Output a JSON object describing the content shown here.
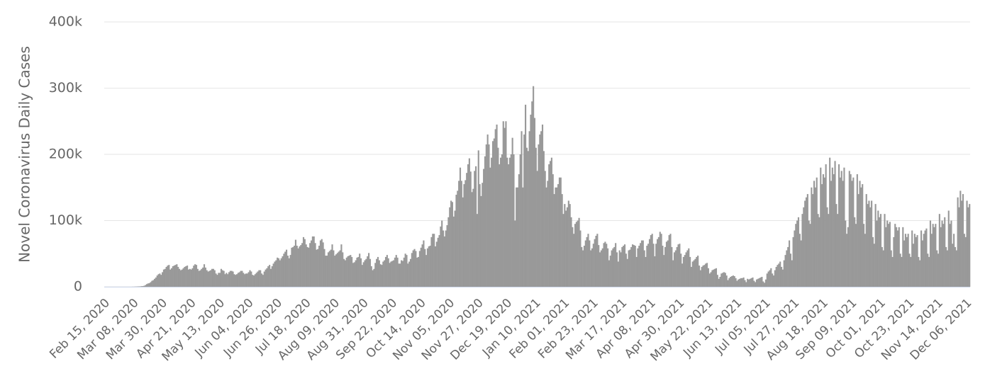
{
  "chart_data": {
    "type": "bar",
    "y_label": "Novel Coronavirus Daily Cases",
    "color": "#999999",
    "grid": true,
    "ylim": [
      0,
      400000
    ],
    "yticks": [
      {
        "value": 0,
        "label": "0"
      },
      {
        "value": 100000,
        "label": "100k"
      },
      {
        "value": 200000,
        "label": "200k"
      },
      {
        "value": 300000,
        "label": "300k"
      },
      {
        "value": 400000,
        "label": "400k"
      }
    ],
    "categories": [
      "Feb 15, 2020",
      null,
      null,
      null,
      null,
      null,
      null,
      null,
      null,
      null,
      null,
      null,
      null,
      null,
      null,
      null,
      null,
      null,
      null,
      null,
      null,
      null,
      "Mar 08, 2020",
      null,
      null,
      null,
      null,
      null,
      null,
      null,
      null,
      null,
      null,
      null,
      null,
      null,
      null,
      null,
      null,
      null,
      null,
      null,
      null,
      null,
      "Mar 30, 2020",
      null,
      null,
      null,
      null,
      null,
      null,
      null,
      null,
      null,
      null,
      null,
      null,
      null,
      null,
      null,
      null,
      null,
      null,
      null,
      null,
      null,
      "Apr 21, 2020",
      null,
      null,
      null,
      null,
      null,
      null,
      null,
      null,
      null,
      null,
      null,
      null,
      null,
      null,
      null,
      null,
      null,
      null,
      null,
      null,
      null,
      "May 13, 2020",
      null,
      null,
      null,
      null,
      null,
      null,
      null,
      null,
      null,
      null,
      null,
      null,
      null,
      null,
      null,
      null,
      null,
      null,
      null,
      null,
      null,
      "Jun 04, 2020",
      null,
      null,
      null,
      null,
      null,
      null,
      null,
      null,
      null,
      null,
      null,
      null,
      null,
      null,
      null,
      null,
      null,
      null,
      null,
      null,
      null,
      "Jun 26, 2020",
      null,
      null,
      null,
      null,
      null,
      null,
      null,
      null,
      null,
      null,
      null,
      null,
      null,
      null,
      null,
      null,
      null,
      null,
      null,
      null,
      null,
      "Jul 18, 2020",
      null,
      null,
      null,
      null,
      null,
      null,
      null,
      null,
      null,
      null,
      null,
      null,
      null,
      null,
      null,
      null,
      null,
      null,
      null,
      null,
      null,
      "Aug 09, 2020",
      null,
      null,
      null,
      null,
      null,
      null,
      null,
      null,
      null,
      null,
      null,
      null,
      null,
      null,
      null,
      null,
      null,
      null,
      null,
      null,
      null,
      "Aug 31, 2020",
      null,
      null,
      null,
      null,
      null,
      null,
      null,
      null,
      null,
      null,
      null,
      null,
      null,
      null,
      null,
      null,
      null,
      null,
      null,
      null,
      null,
      "Sep 22, 2020",
      null,
      null,
      null,
      null,
      null,
      null,
      null,
      null,
      null,
      null,
      null,
      null,
      null,
      null,
      null,
      null,
      null,
      null,
      null,
      null,
      null,
      "Oct 14, 2020",
      null,
      null,
      null,
      null,
      null,
      null,
      null,
      null,
      null,
      null,
      null,
      null,
      null,
      null,
      null,
      null,
      null,
      null,
      null,
      null,
      null,
      "Nov 05, 2020",
      null,
      null,
      null,
      null,
      null,
      null,
      null,
      null,
      null,
      null,
      null,
      null,
      null,
      null,
      null,
      null,
      null,
      null,
      null,
      null,
      null,
      "Nov 27, 2020",
      null,
      null,
      null,
      null,
      null,
      null,
      null,
      null,
      null,
      null,
      null,
      null,
      null,
      null,
      null,
      null,
      null,
      null,
      null,
      null,
      null,
      "Dec 19, 2020",
      null,
      null,
      null,
      null,
      null,
      null,
      null,
      null,
      null,
      null,
      null,
      null,
      null,
      null,
      null,
      null,
      null,
      null,
      null,
      null,
      null,
      "Jan 10, 2021",
      null,
      null,
      null,
      null,
      null,
      null,
      null,
      null,
      null,
      null,
      null,
      null,
      null,
      null,
      null,
      null,
      null,
      null,
      null,
      null,
      null,
      "Feb 01, 2021",
      null,
      null,
      null,
      null,
      null,
      null,
      null,
      null,
      null,
      null,
      null,
      null,
      null,
      null,
      null,
      null,
      null,
      null,
      null,
      null,
      null,
      "Feb 23, 2021",
      null,
      null,
      null,
      null,
      null,
      null,
      null,
      null,
      null,
      null,
      null,
      null,
      null,
      null,
      null,
      null,
      null,
      null,
      null,
      null,
      null,
      "Mar 17, 2021",
      null,
      null,
      null,
      null,
      null,
      null,
      null,
      null,
      null,
      null,
      null,
      null,
      null,
      null,
      null,
      null,
      null,
      null,
      null,
      null,
      null,
      "Apr 08, 2021",
      null,
      null,
      null,
      null,
      null,
      null,
      null,
      null,
      null,
      null,
      null,
      null,
      null,
      null,
      null,
      null,
      null,
      null,
      null,
      null,
      null,
      "Apr 30, 2021",
      null,
      null,
      null,
      null,
      null,
      null,
      null,
      null,
      null,
      null,
      null,
      null,
      null,
      null,
      null,
      null,
      null,
      null,
      null,
      null,
      null,
      "May 22, 2021",
      null,
      null,
      null,
      null,
      null,
      null,
      null,
      null,
      null,
      null,
      null,
      null,
      null,
      null,
      null,
      null,
      null,
      null,
      null,
      null,
      null,
      "Jun 13, 2021",
      null,
      null,
      null,
      null,
      null,
      null,
      null,
      null,
      null,
      null,
      null,
      null,
      null,
      null,
      null,
      null,
      null,
      null,
      null,
      null,
      null,
      "Jul 05, 2021",
      null,
      null,
      null,
      null,
      null,
      null,
      null,
      null,
      null,
      null,
      null,
      null,
      null,
      null,
      null,
      null,
      null,
      null,
      null,
      null,
      null,
      "Jul 27, 2021",
      null,
      null,
      null,
      null,
      null,
      null,
      null,
      null,
      null,
      null,
      null,
      null,
      null,
      null,
      null,
      null,
      null,
      null,
      null,
      null,
      null,
      "Aug 18, 2021",
      null,
      null,
      null,
      null,
      null,
      null,
      null,
      null,
      null,
      null,
      null,
      null,
      null,
      null,
      null,
      null,
      null,
      null,
      null,
      null,
      null,
      "Sep 09, 2021",
      null,
      null,
      null,
      null,
      null,
      null,
      null,
      null,
      null,
      null,
      null,
      null,
      null,
      null,
      null,
      null,
      null,
      null,
      null,
      null,
      null,
      "Oct 01, 2021",
      null,
      null,
      null,
      null,
      null,
      null,
      null,
      null,
      null,
      null,
      null,
      null,
      null,
      null,
      null,
      null,
      null,
      null,
      null,
      null,
      null,
      "Oct 23, 2021",
      null,
      null,
      null,
      null,
      null,
      null,
      null,
      null,
      null,
      null,
      null,
      null,
      null,
      null,
      null,
      null,
      null,
      null,
      null,
      null,
      null,
      "Nov 14, 2021",
      null,
      null,
      null,
      null,
      null,
      null,
      null,
      null,
      null,
      null,
      null,
      null,
      null,
      null,
      null,
      null,
      null,
      null,
      null,
      null,
      null,
      "Dec 06, 2021",
      null,
      null
    ],
    "values": [
      0,
      0,
      0,
      0,
      0,
      0,
      0,
      0,
      0,
      0,
      0,
      0,
      0,
      0,
      0,
      0,
      0,
      0,
      0,
      0,
      0,
      100,
      100,
      200,
      300,
      400,
      500,
      600,
      900,
      1000,
      1500,
      2500,
      4000,
      5000,
      5500,
      7000,
      9000,
      10000,
      12000,
      14000,
      17000,
      19000,
      20000,
      18000,
      22000,
      26000,
      27000,
      30000,
      32000,
      33000,
      26000,
      28000,
      31000,
      32000,
      33000,
      34000,
      30000,
      27000,
      25000,
      26000,
      28000,
      30000,
      31000,
      32000,
      26000,
      27000,
      26000,
      28000,
      32000,
      34000,
      33000,
      27000,
      24000,
      25000,
      27000,
      29000,
      34000,
      29000,
      25000,
      23000,
      24000,
      25000,
      27000,
      27000,
      25000,
      20000,
      18000,
      21000,
      21000,
      27000,
      25000,
      24000,
      19000,
      21000,
      19000,
      22000,
      24000,
      24000,
      23000,
      19000,
      18000,
      19000,
      21000,
      22000,
      24000,
      24000,
      21000,
      19000,
      20000,
      20000,
      22000,
      25000,
      23000,
      18000,
      17000,
      19000,
      21000,
      23000,
      25000,
      25000,
      20000,
      18000,
      23000,
      26000,
      28000,
      31000,
      33000,
      27000,
      31000,
      35000,
      38000,
      40000,
      44000,
      43000,
      40000,
      43000,
      46000,
      50000,
      53000,
      56000,
      47000,
      43000,
      48000,
      59000,
      60000,
      62000,
      71000,
      62000,
      58000,
      61000,
      63000,
      66000,
      75000,
      72000,
      64000,
      60000,
      59000,
      66000,
      70000,
      76000,
      76000,
      66000,
      56000,
      57000,
      62000,
      70000,
      72000,
      67000,
      57000,
      47000,
      47000,
      52000,
      54000,
      56000,
      64000,
      55000,
      47000,
      49000,
      51000,
      53000,
      55000,
      64000,
      52000,
      42000,
      40000,
      44000,
      46000,
      47000,
      48000,
      45000,
      36000,
      37000,
      40000,
      44000,
      45000,
      50000,
      43000,
      33000,
      37000,
      40000,
      42000,
      46000,
      51000,
      42000,
      31000,
      25000,
      27000,
      36000,
      42000,
      45000,
      40000,
      34000,
      33000,
      38000,
      40000,
      45000,
      48000,
      43000,
      36000,
      38000,
      39000,
      40000,
      44000,
      48000,
      44000,
      35000,
      35000,
      40000,
      39000,
      44000,
      50000,
      48000,
      35000,
      38000,
      42000,
      51000,
      55000,
      57000,
      54000,
      44000,
      45000,
      54000,
      59000,
      64000,
      70000,
      57000,
      48000,
      58000,
      61000,
      62000,
      75000,
      80000,
      80000,
      61000,
      68000,
      74000,
      78000,
      91000,
      100000,
      85000,
      76000,
      85000,
      93000,
      105000,
      120000,
      130000,
      128000,
      106000,
      115000,
      139000,
      145000,
      160000,
      180000,
      160000,
      135000,
      155000,
      161000,
      172000,
      185000,
      194000,
      174000,
      143000,
      148000,
      175000,
      182000,
      110000,
      206000,
      155000,
      137000,
      157000,
      178000,
      197000,
      215000,
      230000,
      215000,
      180000,
      195000,
      220000,
      224000,
      238000,
      245000,
      210000,
      185000,
      195000,
      200000,
      250000,
      240000,
      250000,
      195000,
      185000,
      195000,
      200000,
      225000,
      200000,
      100000,
      150000,
      150000,
      170000,
      200000,
      235000,
      150000,
      230000,
      275000,
      210000,
      205000,
      235000,
      260000,
      280000,
      303000,
      255000,
      210000,
      175000,
      215000,
      230000,
      235000,
      245000,
      205000,
      175000,
      150000,
      160000,
      185000,
      190000,
      195000,
      170000,
      140000,
      150000,
      150000,
      155000,
      165000,
      165000,
      140000,
      110000,
      125000,
      115000,
      120000,
      130000,
      125000,
      105000,
      90000,
      80000,
      95000,
      98000,
      100000,
      104000,
      85000,
      60000,
      55000,
      62000,
      70000,
      75000,
      80000,
      70000,
      55000,
      58000,
      65000,
      72000,
      77000,
      80000,
      63000,
      52000,
      55000,
      58000,
      66000,
      68000,
      65000,
      58000,
      40000,
      47000,
      55000,
      58000,
      60000,
      66000,
      52000,
      38000,
      55000,
      52000,
      60000,
      62000,
      64000,
      50000,
      42000,
      55000,
      56000,
      60000,
      64000,
      63000,
      62000,
      45000,
      58000,
      62000,
      66000,
      70000,
      70000,
      55000,
      45000,
      62000,
      65000,
      72000,
      78000,
      80000,
      65000,
      46000,
      65000,
      72000,
      75000,
      83000,
      80000,
      62000,
      48000,
      60000,
      68000,
      70000,
      78000,
      80000,
      60000,
      40000,
      52000,
      55000,
      60000,
      64000,
      65000,
      50000,
      35000,
      45000,
      48000,
      52000,
      55000,
      58000,
      45000,
      30000,
      38000,
      40000,
      42000,
      45000,
      47000,
      32000,
      25000,
      30000,
      32000,
      33000,
      35000,
      36000,
      28000,
      20000,
      22000,
      25000,
      26000,
      27000,
      28000,
      18000,
      12000,
      15000,
      20000,
      21000,
      22000,
      21000,
      17000,
      10000,
      13000,
      15000,
      16000,
      17000,
      16000,
      13000,
      9000,
      11000,
      12000,
      13000,
      13000,
      14000,
      10000,
      7000,
      12000,
      11000,
      12000,
      13000,
      14000,
      9000,
      7000,
      11000,
      12000,
      13000,
      14000,
      15000,
      8000,
      6000,
      11000,
      20000,
      23000,
      25000,
      28000,
      20000,
      17000,
      25000,
      30000,
      33000,
      35000,
      38000,
      30000,
      26000,
      40000,
      48000,
      55000,
      60000,
      70000,
      50000,
      40000,
      75000,
      85000,
      95000,
      100000,
      105000,
      80000,
      70000,
      110000,
      120000,
      130000,
      135000,
      140000,
      100000,
      95000,
      150000,
      140000,
      160000,
      150000,
      165000,
      110000,
      105000,
      180000,
      155000,
      170000,
      165000,
      185000,
      120000,
      110000,
      195000,
      160000,
      180000,
      170000,
      190000,
      125000,
      110000,
      185000,
      165000,
      175000,
      160000,
      180000,
      100000,
      80000,
      90000,
      175000,
      170000,
      160000,
      165000,
      105000,
      95000,
      170000,
      140000,
      160000,
      150000,
      155000,
      95000,
      80000,
      140000,
      125000,
      130000,
      120000,
      130000,
      75000,
      65000,
      125000,
      100000,
      115000,
      105000,
      110000,
      60000,
      55000,
      110000,
      90000,
      100000,
      95000,
      98000,
      55000,
      45000,
      75000,
      95000,
      90000,
      85000,
      90000,
      50000,
      45000,
      90000,
      70000,
      80000,
      75000,
      80000,
      50000,
      45000,
      85000,
      65000,
      80000,
      75000,
      78000,
      45000,
      40000,
      85000,
      70000,
      80000,
      85000,
      88000,
      50000,
      45000,
      100000,
      80000,
      95000,
      90000,
      95000,
      55000,
      50000,
      110000,
      90000,
      100000,
      95000,
      105000,
      60000,
      55000,
      115000,
      95000,
      100000,
      65000,
      80000,
      60000,
      55000,
      135000,
      120000,
      145000,
      130000,
      140000,
      80000,
      75000,
      130000,
      120000,
      125000
    ]
  }
}
